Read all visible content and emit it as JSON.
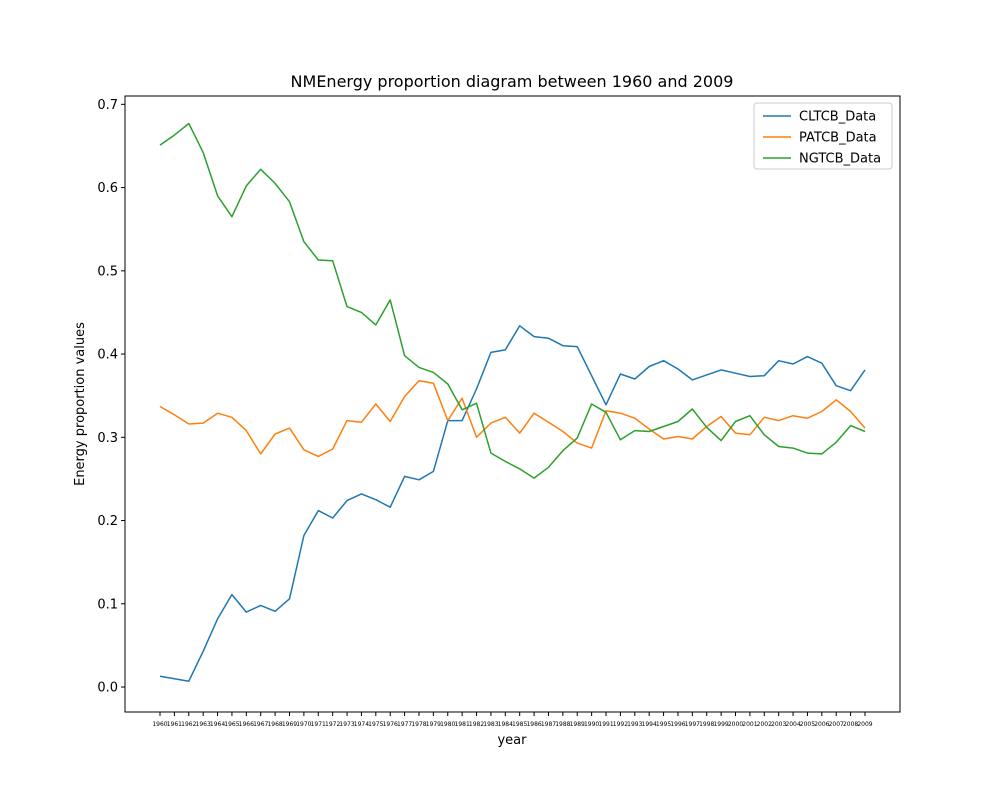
{
  "chart_data": {
    "type": "line",
    "title": "NMEnergy  proportion diagram between 1960 and 2009",
    "xlabel": "year",
    "ylabel": "Energy proportion values",
    "ylim": [
      -0.03,
      0.71
    ],
    "yticks": [
      "0.0",
      "0.1",
      "0.2",
      "0.3",
      "0.4",
      "0.5",
      "0.6",
      "0.7"
    ],
    "grid": false,
    "legend_position": "top-right",
    "x": [
      "1960",
      "1961",
      "1962",
      "1963",
      "1964",
      "1965",
      "1966",
      "1967",
      "1968",
      "1969",
      "1970",
      "1971",
      "1972",
      "1973",
      "1974",
      "1975",
      "1976",
      "1977",
      "1978",
      "1979",
      "1980",
      "1981",
      "1982",
      "1983",
      "1984",
      "1985",
      "1986",
      "1987",
      "1988",
      "1989",
      "1990",
      "1991",
      "1992",
      "1993",
      "1994",
      "1995",
      "1996",
      "1997",
      "1998",
      "1999",
      "2000",
      "2001",
      "2002",
      "2003",
      "2004",
      "2005",
      "2006",
      "2007",
      "2008",
      "2009"
    ],
    "series": [
      {
        "name": "CLTCB_Data",
        "color": "#1f77b4",
        "values": [
          0.013,
          0.01,
          0.007,
          0.043,
          0.082,
          0.111,
          0.09,
          0.098,
          0.091,
          0.106,
          0.182,
          0.212,
          0.203,
          0.224,
          0.232,
          0.225,
          0.216,
          0.253,
          0.249,
          0.259,
          0.32,
          0.32,
          0.358,
          0.402,
          0.405,
          0.434,
          0.421,
          0.419,
          0.41,
          0.409,
          0.374,
          0.339,
          0.376,
          0.37,
          0.385,
          0.392,
          0.382,
          0.369,
          0.375,
          0.381,
          0.377,
          0.373,
          0.374,
          0.392,
          0.388,
          0.397,
          0.389,
          0.362,
          0.356,
          0.381
        ]
      },
      {
        "name": "PATCB_Data",
        "color": "#ff7f0e",
        "values": [
          0.337,
          0.327,
          0.316,
          0.317,
          0.329,
          0.324,
          0.308,
          0.28,
          0.304,
          0.311,
          0.285,
          0.277,
          0.286,
          0.32,
          0.318,
          0.34,
          0.319,
          0.349,
          0.368,
          0.365,
          0.32,
          0.347,
          0.3,
          0.317,
          0.324,
          0.305,
          0.329,
          0.318,
          0.307,
          0.293,
          0.287,
          0.332,
          0.329,
          0.323,
          0.31,
          0.298,
          0.301,
          0.298,
          0.313,
          0.325,
          0.305,
          0.303,
          0.324,
          0.32,
          0.326,
          0.323,
          0.331,
          0.345,
          0.331,
          0.311
        ]
      },
      {
        "name": "NGTCB_Data",
        "color": "#2ca02c",
        "values": [
          0.651,
          0.663,
          0.677,
          0.642,
          0.59,
          0.565,
          0.602,
          0.622,
          0.605,
          0.583,
          0.535,
          0.513,
          0.512,
          0.457,
          0.45,
          0.435,
          0.465,
          0.398,
          0.384,
          0.378,
          0.364,
          0.333,
          0.341,
          0.281,
          0.271,
          0.262,
          0.251,
          0.264,
          0.284,
          0.299,
          0.34,
          0.33,
          0.297,
          0.308,
          0.307,
          0.313,
          0.319,
          0.334,
          0.312,
          0.296,
          0.319,
          0.326,
          0.303,
          0.289,
          0.287,
          0.281,
          0.28,
          0.294,
          0.314,
          0.307
        ]
      }
    ]
  }
}
